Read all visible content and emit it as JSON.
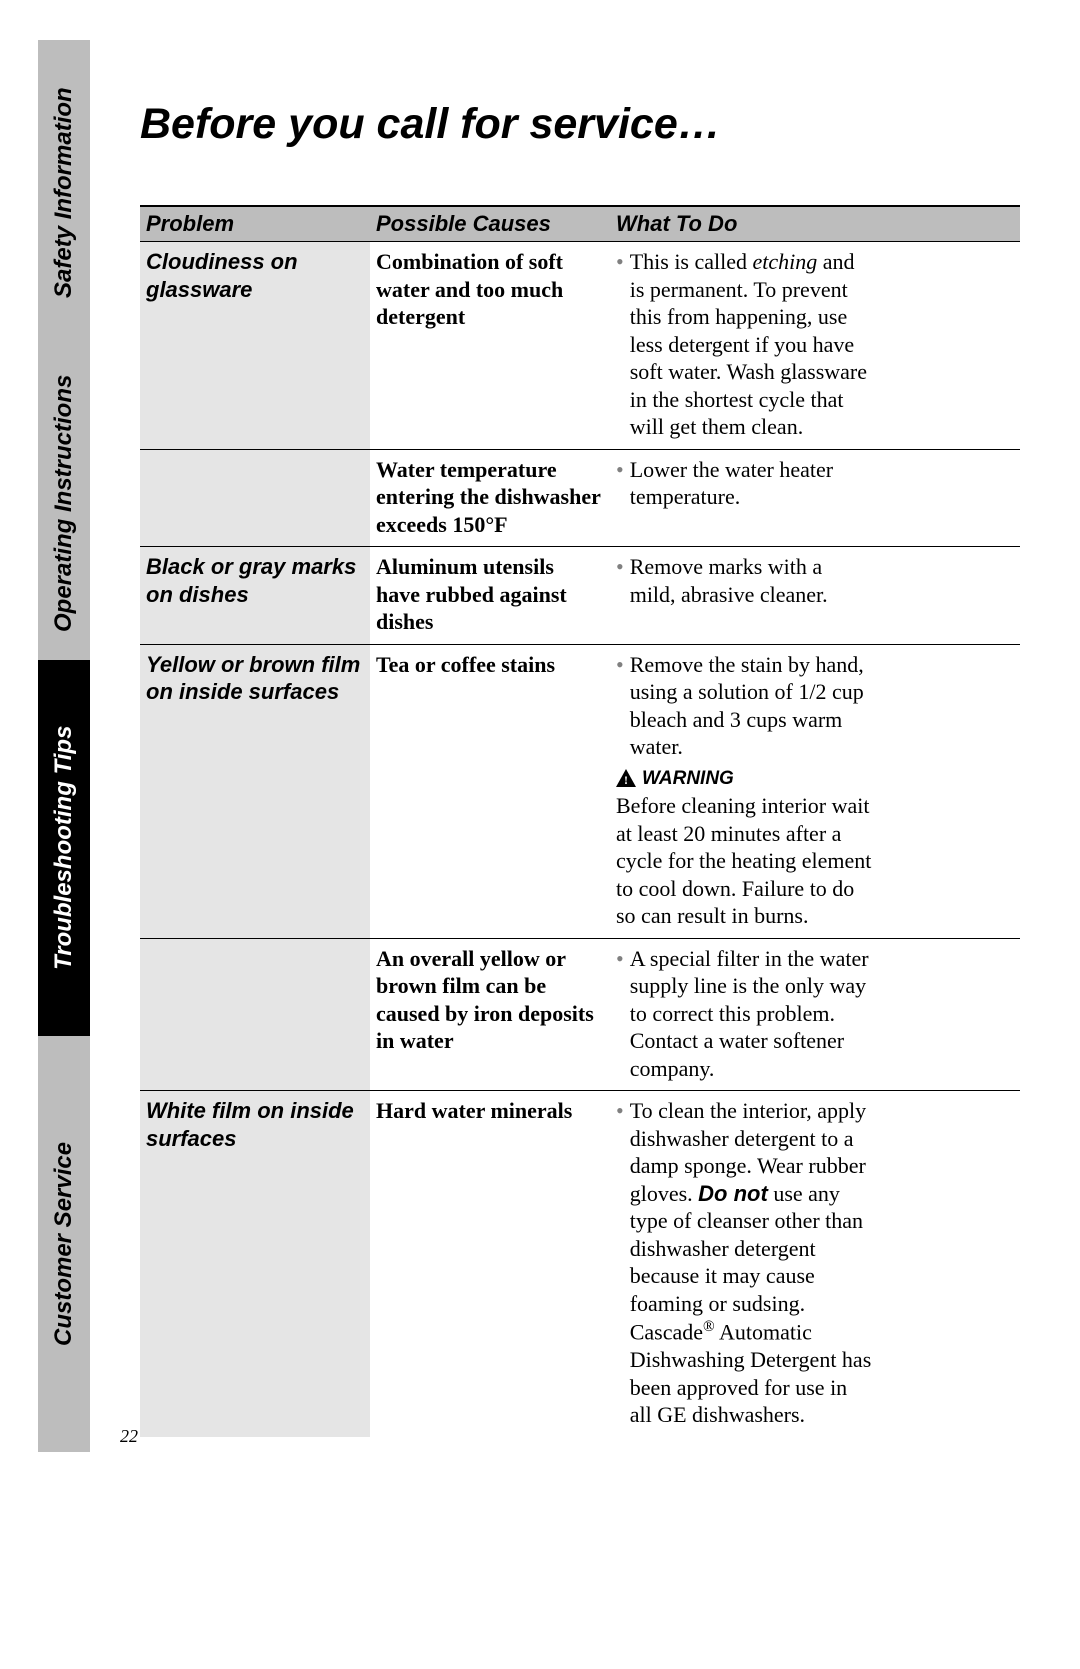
{
  "sidebar": {
    "tabs": [
      {
        "label": "Safety Information",
        "style": "gray"
      },
      {
        "label": "Operating Instructions",
        "style": "gray"
      },
      {
        "label": "Troubleshooting Tips",
        "style": "black"
      },
      {
        "label": "Customer Service",
        "style": "gray"
      }
    ]
  },
  "title": "Before you call for service…",
  "headers": {
    "problem": "Problem",
    "causes": "Possible Causes",
    "todo": "What To Do"
  },
  "rows": [
    {
      "problem": "Cloudiness on glassware",
      "subrows": [
        {
          "cause": "Combination of soft water and too much detergent",
          "todos": [
            {
              "pre": "This is called ",
              "italic": "etching",
              "post": " and is permanent. To prevent this from happening, use less detergent if you have soft water. Wash glassware in the shortest cycle that will get them clean."
            }
          ]
        },
        {
          "cause": "Water temperature entering the dishwasher exceeds 150°F",
          "todos": [
            {
              "text": "Lower the water heater temperature."
            }
          ]
        }
      ]
    },
    {
      "problem": "Black or gray marks on dishes",
      "subrows": [
        {
          "cause": "Aluminum utensils have rubbed against dishes",
          "todos": [
            {
              "text": "Remove marks with a mild, abrasive cleaner."
            }
          ]
        }
      ]
    },
    {
      "problem": "Yellow or brown film on inside surfaces",
      "subrows": [
        {
          "cause": "Tea or coffee stains",
          "todos": [
            {
              "text": "Remove the stain by hand, using a solution of 1/2 cup bleach and 3 cups warm water."
            }
          ],
          "warning": {
            "label": "WARNING",
            "text": "Before cleaning interior wait at least 20 minutes after a cycle for the heating element to cool down. Failure to do so can result in burns."
          }
        },
        {
          "cause": "An overall yellow or brown film can be caused by iron deposits in water",
          "todos": [
            {
              "text": "A special filter in the water supply line is the only way to correct this problem. Contact a water softener company."
            }
          ]
        }
      ]
    },
    {
      "problem": "White film on inside surfaces",
      "subrows": [
        {
          "cause": "Hard water minerals",
          "todos": [
            {
              "pre": "To clean the interior, apply dishwasher detergent to a damp sponge. Wear rubber gloves. ",
              "boldital": "Do not",
              "post": " use any type of cleanser other than dishwasher detergent because it may cause foaming or sudsing. Cascade",
              "sup": "®",
              "post2": " Automatic Dishwashing Detergent has been approved for use in all GE dishwashers."
            }
          ]
        }
      ]
    }
  ],
  "page_number": "22",
  "colors": {
    "tab_gray": "#bdbdbd",
    "tab_black": "#000000",
    "row_gray": "#e5e5e5",
    "bullet": "#808080"
  }
}
